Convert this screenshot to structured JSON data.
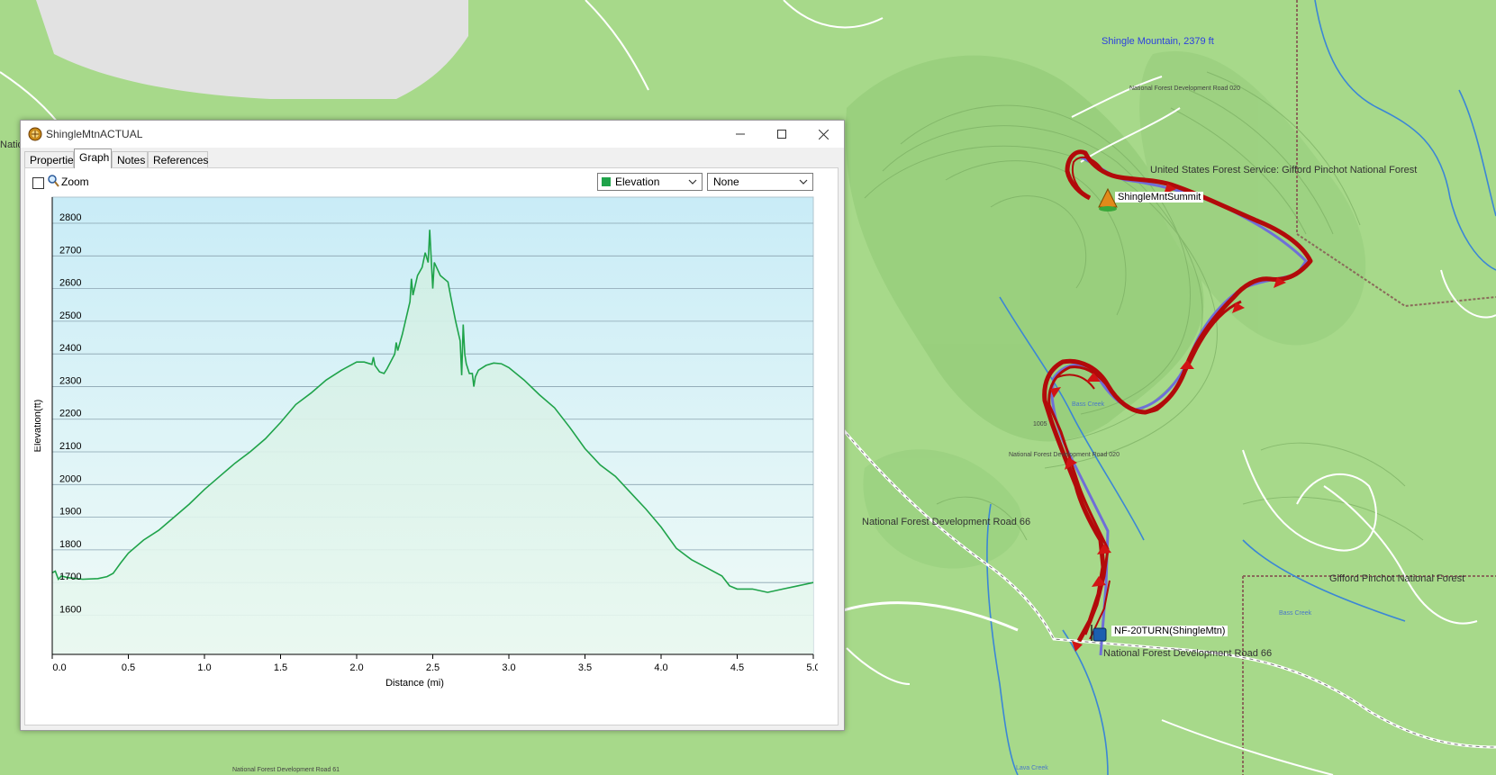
{
  "map": {
    "labels": {
      "peak": "Shingle Mountain, 2379 ft",
      "road_020_top": "National Forest Development Road 020",
      "forest_service": "United States Forest Service: Gifford Pinchot National Forest",
      "summit_waypoint": "ShingleMntSummit",
      "road_66_left": "National Forest Development Road 66",
      "road_020_mid": "National Forest Development Road 020",
      "num_1005": "1005",
      "creek_1": "Bass Creek",
      "creek_2": "Bass Creek",
      "creek_3": "Lava Creek",
      "gifford": "Gifford Pinchot National Forest",
      "start_waypoint": "NF-20TURN(ShingleMtn)",
      "road_66_right": "National Forest Development Road 66",
      "road_bottom": "National Forest Development Road 61",
      "edge_left": "Natio"
    },
    "colors": {
      "land": "#a7d98a",
      "track": "#b20a0a",
      "water": "#3b86d6",
      "road": "#ffffff"
    }
  },
  "window": {
    "title": "ShingleMtnACTUAL",
    "app_icon": "app-globe-icon",
    "controls": {
      "minimize": "minimize-icon",
      "maximize": "maximize-icon",
      "close": "close-icon"
    },
    "tabs": [
      {
        "label": "Properties",
        "active": false
      },
      {
        "label": "Graph",
        "active": true
      },
      {
        "label": "Notes",
        "active": false
      },
      {
        "label": "References",
        "active": false
      }
    ],
    "toolbar": {
      "zoom_label": "Zoom",
      "zoom_checked": false,
      "series_select": "Elevation",
      "series_color": "#1fa34a",
      "secondary_select": "None"
    }
  },
  "chart_data": {
    "type": "area",
    "xlabel": "Distance  (mi)",
    "ylabel": "Elevation(ft)",
    "xlim": [
      0,
      5
    ],
    "ylim": [
      1480,
      2880
    ],
    "x_ticks": [
      "0.0",
      "0.5",
      "1.0",
      "1.5",
      "2.0",
      "2.5",
      "3.0",
      "3.5",
      "4.0",
      "4.5",
      "5.0"
    ],
    "y_ticks": [
      "1600",
      "1700",
      "1800",
      "1900",
      "2000",
      "2100",
      "2200",
      "2300",
      "2400",
      "2500",
      "2600",
      "2700",
      "2800"
    ],
    "grid": true,
    "line_color": "#1fa34a",
    "series": [
      {
        "values": [
          [
            0.0,
            1730
          ],
          [
            0.02,
            1735
          ],
          [
            0.04,
            1710
          ],
          [
            0.06,
            1720
          ],
          [
            0.1,
            1715
          ],
          [
            0.2,
            1710
          ],
          [
            0.3,
            1712
          ],
          [
            0.36,
            1718
          ],
          [
            0.4,
            1728
          ],
          [
            0.45,
            1760
          ],
          [
            0.5,
            1790
          ],
          [
            0.6,
            1830
          ],
          [
            0.7,
            1860
          ],
          [
            0.8,
            1900
          ],
          [
            0.9,
            1940
          ],
          [
            1.0,
            1985
          ],
          [
            1.1,
            2025
          ],
          [
            1.2,
            2065
          ],
          [
            1.3,
            2100
          ],
          [
            1.4,
            2140
          ],
          [
            1.5,
            2190
          ],
          [
            1.6,
            2245
          ],
          [
            1.7,
            2280
          ],
          [
            1.8,
            2320
          ],
          [
            1.9,
            2350
          ],
          [
            2.0,
            2375
          ],
          [
            2.05,
            2375
          ],
          [
            2.1,
            2368
          ],
          [
            2.11,
            2390
          ],
          [
            2.12,
            2365
          ],
          [
            2.15,
            2345
          ],
          [
            2.18,
            2340
          ],
          [
            2.2,
            2355
          ],
          [
            2.25,
            2400
          ],
          [
            2.26,
            2435
          ],
          [
            2.27,
            2410
          ],
          [
            2.3,
            2460
          ],
          [
            2.35,
            2560
          ],
          [
            2.36,
            2630
          ],
          [
            2.37,
            2580
          ],
          [
            2.4,
            2640
          ],
          [
            2.43,
            2665
          ],
          [
            2.45,
            2710
          ],
          [
            2.47,
            2680
          ],
          [
            2.48,
            2780
          ],
          [
            2.49,
            2690
          ],
          [
            2.5,
            2600
          ],
          [
            2.51,
            2680
          ],
          [
            2.55,
            2640
          ],
          [
            2.6,
            2620
          ],
          [
            2.62,
            2570
          ],
          [
            2.65,
            2500
          ],
          [
            2.68,
            2440
          ],
          [
            2.69,
            2335
          ],
          [
            2.7,
            2490
          ],
          [
            2.71,
            2400
          ],
          [
            2.72,
            2370
          ],
          [
            2.74,
            2340
          ],
          [
            2.76,
            2340
          ],
          [
            2.77,
            2300
          ],
          [
            2.78,
            2330
          ],
          [
            2.8,
            2350
          ],
          [
            2.85,
            2365
          ],
          [
            2.9,
            2372
          ],
          [
            2.95,
            2370
          ],
          [
            3.0,
            2358
          ],
          [
            3.1,
            2320
          ],
          [
            3.2,
            2275
          ],
          [
            3.3,
            2235
          ],
          [
            3.4,
            2175
          ],
          [
            3.5,
            2110
          ],
          [
            3.6,
            2060
          ],
          [
            3.7,
            2025
          ],
          [
            3.8,
            1975
          ],
          [
            3.9,
            1925
          ],
          [
            4.0,
            1870
          ],
          [
            4.1,
            1805
          ],
          [
            4.2,
            1770
          ],
          [
            4.3,
            1745
          ],
          [
            4.4,
            1720
          ],
          [
            4.45,
            1690
          ],
          [
            4.5,
            1680
          ],
          [
            4.55,
            1680
          ],
          [
            4.6,
            1680
          ],
          [
            4.7,
            1670
          ],
          [
            4.8,
            1680
          ],
          [
            4.9,
            1690
          ],
          [
            5.0,
            1700
          ]
        ]
      }
    ]
  }
}
